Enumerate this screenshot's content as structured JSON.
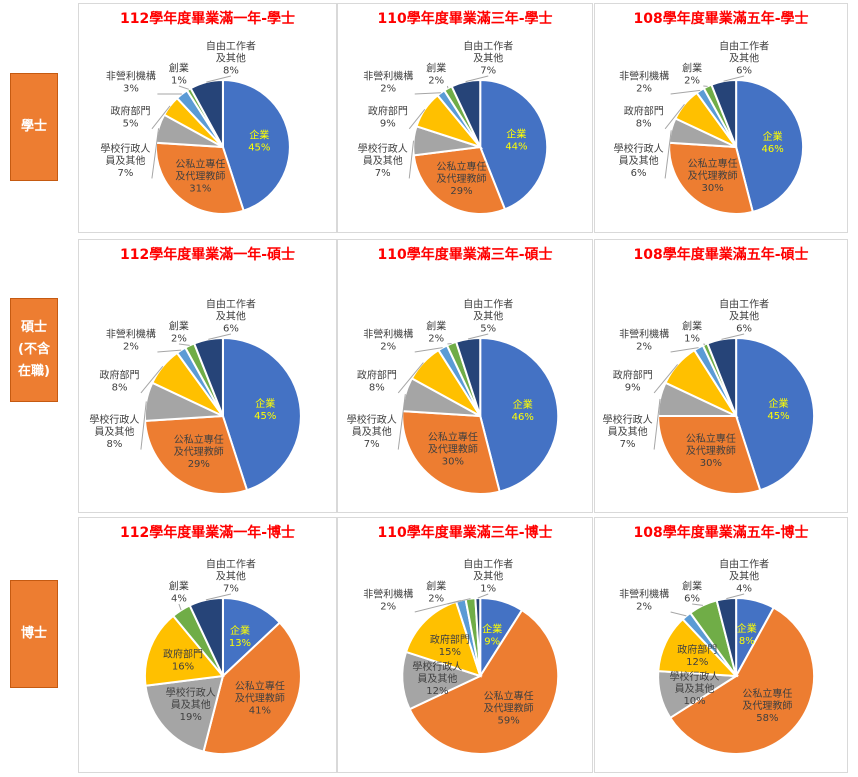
{
  "row_labels": [
    "學士",
    "碩士(不含在職)",
    "博士"
  ],
  "colors": {
    "企業": "#4472C4",
    "公私立專任及代理教師": "#ED7D31",
    "學校行政人員及其他": "#A5A5A5",
    "政府部門": "#FFC000",
    "非營利機構": "#5B9BD5",
    "創業": "#70AD47",
    "自由工作者及其他": "#264478"
  },
  "chart_data": [
    {
      "type": "pie",
      "title": "112學年度畢業滿一年-學士",
      "categories": [
        "企業",
        "公私立專任及代理教師",
        "學校行政人員及其他",
        "政府部門",
        "非營利機構",
        "創業",
        "自由工作者及其他"
      ],
      "values": [
        45,
        31,
        7,
        5,
        3,
        1,
        8
      ]
    },
    {
      "type": "pie",
      "title": "110學年度畢業滿三年-學士",
      "categories": [
        "企業",
        "公私立專任及代理教師",
        "學校行政人員及其他",
        "政府部門",
        "非營利機構",
        "創業",
        "自由工作者及其他"
      ],
      "values": [
        44,
        29,
        7,
        9,
        2,
        2,
        7
      ]
    },
    {
      "type": "pie",
      "title": "108學年度畢業滿五年-學士",
      "categories": [
        "企業",
        "公私立專任及代理教師",
        "學校行政人員及其他",
        "政府部門",
        "非營利機構",
        "創業",
        "自由工作者及其他"
      ],
      "values": [
        46,
        30,
        6,
        8,
        2,
        2,
        6
      ]
    },
    {
      "type": "pie",
      "title": "112學年度畢業滿一年-碩士",
      "categories": [
        "企業",
        "公私立專任及代理教師",
        "學校行政人員及其他",
        "政府部門",
        "非營利機構",
        "創業",
        "自由工作者及其他"
      ],
      "values": [
        45,
        29,
        8,
        8,
        2,
        2,
        6
      ]
    },
    {
      "type": "pie",
      "title": "110學年度畢業滿三年-碩士",
      "categories": [
        "企業",
        "公私立專任及代理教師",
        "學校行政人員及其他",
        "政府部門",
        "非營利機構",
        "創業",
        "自由工作者及其他"
      ],
      "values": [
        46,
        30,
        7,
        8,
        2,
        2,
        5
      ]
    },
    {
      "type": "pie",
      "title": "108學年度畢業滿五年-碩士",
      "categories": [
        "企業",
        "公私立專任及代理教師",
        "學校行政人員及其他",
        "政府部門",
        "非營利機構",
        "創業",
        "自由工作者及其他"
      ],
      "values": [
        45,
        30,
        7,
        9,
        2,
        1,
        6
      ]
    },
    {
      "type": "pie",
      "title": "112學年度畢業滿一年-博士",
      "categories": [
        "企業",
        "公私立專任及代理教師",
        "學校行政人員及其他",
        "政府部門",
        "創業",
        "自由工作者及其他"
      ],
      "values": [
        13,
        41,
        19,
        16,
        4,
        7
      ]
    },
    {
      "type": "pie",
      "title": "110學年度畢業滿三年-博士",
      "categories": [
        "企業",
        "公私立專任及代理教師",
        "學校行政人員及其他",
        "政府部門",
        "非營利機構",
        "創業",
        "自由工作者及其他"
      ],
      "values": [
        9,
        59,
        12,
        15,
        2,
        2,
        1
      ]
    },
    {
      "type": "pie",
      "title": "108學年度畢業滿五年-博士",
      "categories": [
        "企業",
        "公私立專任及代理教師",
        "學校行政人員及其他",
        "政府部門",
        "非營利機構",
        "創業",
        "自由工作者及其他"
      ],
      "values": [
        8,
        58,
        10,
        12,
        2,
        6,
        4
      ]
    }
  ]
}
